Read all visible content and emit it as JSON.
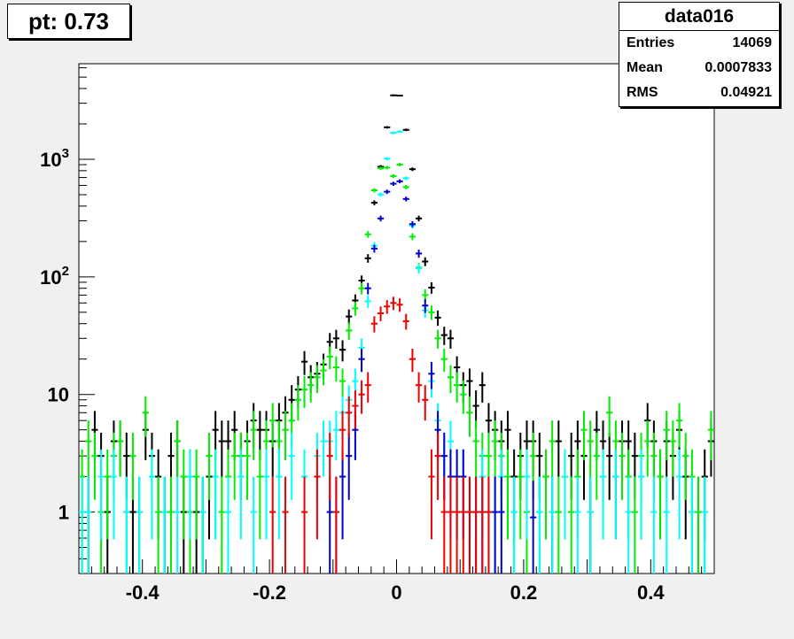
{
  "title_box": {
    "text": "pt: 0.73"
  },
  "stats": {
    "name": "data016",
    "rows": [
      {
        "label": "Entries",
        "value": "14069"
      },
      {
        "label": "Mean",
        "value": "0.0007833"
      },
      {
        "label": "RMS",
        "value": "0.04921"
      }
    ]
  },
  "colors": {
    "black": "#000000",
    "green": "#00ee00",
    "cyan": "#00ffff",
    "blue": "#0000cc",
    "red": "#ee0000"
  },
  "chart_data": {
    "type": "scatter",
    "xlim": [
      -0.5,
      0.5
    ],
    "ylim": [
      0.3,
      6500
    ],
    "log_y": true,
    "grid": false,
    "x_ticks": [
      -0.4,
      -0.2,
      0,
      0.2,
      0.4
    ],
    "x_tick_labels": [
      "-0.4",
      "-0.2",
      "0",
      "0.2",
      "0.4"
    ],
    "y_ticks": [
      1,
      10,
      100,
      1000
    ],
    "y_tick_labels": [
      "1",
      "10",
      "10^2",
      "10^3"
    ],
    "bin_width": 0.01,
    "series": [
      {
        "color": "black",
        "x": [
          -0.495,
          -0.485,
          -0.475,
          -0.465,
          -0.455,
          -0.445,
          -0.435,
          -0.425,
          -0.415,
          -0.405,
          -0.395,
          -0.385,
          -0.375,
          -0.365,
          -0.355,
          -0.345,
          -0.335,
          -0.325,
          -0.315,
          -0.305,
          -0.295,
          -0.285,
          -0.275,
          -0.265,
          -0.255,
          -0.245,
          -0.235,
          -0.225,
          -0.215,
          -0.205,
          -0.195,
          -0.185,
          -0.175,
          -0.165,
          -0.155,
          -0.145,
          -0.135,
          -0.125,
          -0.115,
          -0.105,
          -0.095,
          -0.085,
          -0.075,
          -0.065,
          -0.055,
          -0.045,
          -0.035,
          -0.025,
          -0.015,
          -0.005,
          0.005,
          0.015,
          0.025,
          0.035,
          0.045,
          0.055,
          0.065,
          0.075,
          0.085,
          0.095,
          0.105,
          0.115,
          0.125,
          0.135,
          0.145,
          0.155,
          0.165,
          0.175,
          0.185,
          0.195,
          0.205,
          0.215,
          0.225,
          0.235,
          0.245,
          0.255,
          0.265,
          0.275,
          0.285,
          0.295,
          0.305,
          0.315,
          0.325,
          0.335,
          0.345,
          0.355,
          0.365,
          0.375,
          0.385,
          0.395,
          0.405,
          0.415,
          0.425,
          0.435,
          0.445,
          0.455,
          0.465,
          0.475,
          0.485,
          0.495
        ],
        "y": [
          1,
          1,
          5,
          3,
          1,
          4,
          4,
          3,
          1,
          1,
          5,
          3,
          2,
          1,
          3,
          4,
          1,
          2,
          1,
          1,
          2,
          5,
          4,
          4,
          5,
          3,
          4,
          6,
          5,
          5,
          4,
          6,
          7,
          9,
          11,
          19,
          14,
          15,
          18,
          28,
          30,
          24,
          46,
          63,
          93,
          144,
          427,
          864,
          1870,
          3500,
          3480,
          1780,
          824,
          314,
          135,
          81,
          45,
          32,
          30,
          17,
          12,
          13,
          8,
          12,
          6,
          5,
          4,
          5,
          2,
          3,
          4,
          4,
          3,
          2,
          1,
          4,
          2,
          3,
          4,
          3,
          1,
          5,
          4,
          3,
          2,
          4,
          4,
          3,
          2,
          6,
          4,
          2,
          4,
          3,
          5,
          2,
          1,
          1,
          2,
          4
        ]
      },
      {
        "color": "green",
        "x": [
          -0.495,
          -0.485,
          -0.475,
          -0.465,
          -0.455,
          -0.445,
          -0.435,
          -0.425,
          -0.415,
          -0.405,
          -0.395,
          -0.385,
          -0.375,
          -0.365,
          -0.355,
          -0.345,
          -0.335,
          -0.325,
          -0.315,
          -0.305,
          -0.295,
          -0.285,
          -0.275,
          -0.265,
          -0.255,
          -0.245,
          -0.235,
          -0.225,
          -0.215,
          -0.205,
          -0.195,
          -0.185,
          -0.175,
          -0.165,
          -0.155,
          -0.145,
          -0.135,
          -0.125,
          -0.115,
          -0.105,
          -0.095,
          -0.085,
          -0.075,
          -0.065,
          -0.055,
          -0.045,
          -0.035,
          -0.025,
          -0.015,
          -0.005,
          0.005,
          0.015,
          0.025,
          0.035,
          0.045,
          0.055,
          0.065,
          0.075,
          0.085,
          0.095,
          0.105,
          0.115,
          0.125,
          0.135,
          0.145,
          0.155,
          0.165,
          0.175,
          0.185,
          0.195,
          0.205,
          0.215,
          0.225,
          0.235,
          0.245,
          0.255,
          0.265,
          0.275,
          0.285,
          0.295,
          0.305,
          0.315,
          0.325,
          0.335,
          0.345,
          0.355,
          0.365,
          0.375,
          0.385,
          0.395,
          0.405,
          0.415,
          0.425,
          0.435,
          0.445,
          0.455,
          0.465,
          0.475,
          0.485,
          0.495
        ],
        "y": [
          2,
          4,
          3,
          1,
          2,
          3,
          4,
          1,
          3,
          1,
          7,
          2,
          1,
          1,
          1,
          4,
          2,
          1,
          2,
          1,
          3,
          2,
          1,
          2,
          3,
          3,
          3,
          5,
          2,
          4,
          6,
          4,
          5,
          6,
          9,
          11,
          12,
          14,
          16,
          21,
          17,
          13,
          35,
          54,
          80,
          230,
          545,
          840,
          850,
          720,
          900,
          580,
          220,
          120,
          70,
          50,
          30,
          20,
          14,
          12,
          10,
          7,
          4,
          3,
          3,
          4,
          3,
          2,
          1,
          2,
          1,
          3,
          1,
          2,
          4,
          1,
          2,
          1,
          2,
          5,
          4,
          3,
          2,
          7,
          4,
          3,
          2,
          1,
          3,
          4,
          3,
          2,
          5,
          4,
          6,
          3,
          2,
          1,
          1,
          5
        ]
      },
      {
        "color": "cyan",
        "x": [
          -0.495,
          -0.485,
          -0.465,
          -0.445,
          -0.425,
          -0.405,
          -0.385,
          -0.365,
          -0.345,
          -0.325,
          -0.305,
          -0.285,
          -0.265,
          -0.245,
          -0.225,
          -0.205,
          -0.185,
          -0.165,
          -0.145,
          -0.125,
          -0.115,
          -0.105,
          -0.095,
          -0.085,
          -0.075,
          -0.065,
          -0.055,
          -0.045,
          -0.035,
          -0.025,
          -0.015,
          -0.005,
          0.005,
          0.015,
          0.025,
          0.035,
          0.045,
          0.055,
          0.065,
          0.075,
          0.085,
          0.095,
          0.105,
          0.115,
          0.125,
          0.135,
          0.145,
          0.155,
          0.165,
          0.185,
          0.205,
          0.225,
          0.245,
          0.265,
          0.285,
          0.305,
          0.325,
          0.345,
          0.365,
          0.385,
          0.405,
          0.425,
          0.445,
          0.465,
          0.485
        ],
        "y": [
          1,
          1,
          2,
          2,
          1,
          1,
          2,
          1,
          1,
          2,
          1,
          2,
          1,
          2,
          1,
          2,
          2,
          3,
          2,
          3,
          4,
          4,
          5,
          7,
          9,
          13,
          25,
          62,
          184,
          502,
          1012,
          1680,
          1720,
          690,
          274,
          118,
          52,
          13,
          6,
          3,
          4,
          2,
          2,
          1,
          1,
          2,
          1,
          1,
          2,
          1,
          2,
          1,
          1,
          2,
          1,
          1,
          2,
          2,
          1,
          2,
          1,
          1,
          2,
          1,
          1
        ]
      },
      {
        "color": "blue",
        "x": [
          -0.105,
          -0.095,
          -0.085,
          -0.075,
          -0.065,
          -0.055,
          -0.045,
          -0.035,
          -0.025,
          -0.015,
          -0.005,
          0.005,
          0.015,
          0.025,
          0.035,
          0.045,
          0.055,
          0.065,
          0.075,
          0.085,
          0.095,
          0.105,
          0.115,
          0.125,
          0.135,
          0.145,
          0.155,
          0.165,
          0.215
        ],
        "y": [
          1,
          1,
          2,
          3,
          5,
          20,
          80,
          174,
          314,
          530,
          620,
          650,
          460,
          281,
          158,
          57,
          15,
          5,
          3,
          2,
          2,
          2,
          1,
          1,
          1,
          1,
          1,
          1,
          0.9
        ]
      },
      {
        "color": "red",
        "x": [
          -0.195,
          -0.175,
          -0.145,
          -0.125,
          -0.105,
          -0.095,
          -0.085,
          -0.075,
          -0.065,
          -0.055,
          -0.045,
          -0.035,
          -0.025,
          -0.015,
          -0.005,
          0.005,
          0.015,
          0.025,
          0.035,
          0.045,
          0.055,
          0.065,
          0.075,
          0.085,
          0.095,
          0.105,
          0.115,
          0.125,
          0.135,
          0.145
        ],
        "y": [
          1,
          1,
          1,
          2,
          3,
          1,
          5,
          7,
          8,
          10,
          12,
          40,
          49,
          56,
          60,
          58,
          42,
          20,
          12,
          9,
          2,
          3,
          1,
          1,
          1,
          1,
          1,
          1,
          1,
          1
        ]
      }
    ]
  }
}
